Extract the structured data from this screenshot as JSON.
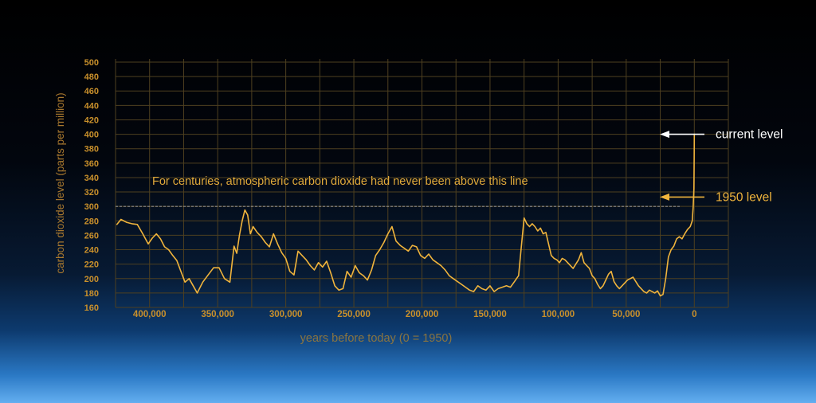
{
  "chart_data": {
    "type": "line",
    "title": "",
    "xlabel": "years before today (0 = 1950)",
    "ylabel": "carbon dioxide level (parts per million)",
    "xlim": [
      425000,
      -25000
    ],
    "ylim": [
      160,
      500
    ],
    "x_ticks": [
      400000,
      350000,
      300000,
      250000,
      200000,
      150000,
      100000,
      50000,
      0
    ],
    "x_tick_labels": [
      "400,000",
      "350,000",
      "300,000",
      "250,000",
      "200,000",
      "150,000",
      "100,000",
      "50,000",
      "0"
    ],
    "y_ticks": [
      160,
      180,
      200,
      220,
      240,
      260,
      280,
      300,
      320,
      340,
      360,
      380,
      400,
      420,
      440,
      460,
      480,
      500
    ],
    "y_tick_labels": [
      "160",
      "180",
      "200",
      "220",
      "240",
      "260",
      "280",
      "300",
      "320",
      "340",
      "360",
      "380",
      "400",
      "420",
      "440",
      "460",
      "480",
      "500"
    ],
    "grid": true,
    "colors": {
      "line": "#f0b43c",
      "grid": "#4e4020",
      "text": "#c9902b",
      "reference": "#8f8f8f"
    },
    "reference_line": {
      "y": 300,
      "label": "For centuries, atmospheric carbon dioxide had never been above this line"
    },
    "annotations": [
      {
        "label": "current level",
        "y": 400,
        "color": "#ffffff"
      },
      {
        "label": "1950 level",
        "y": 313,
        "color": "#f0b43c"
      }
    ],
    "series": [
      {
        "x": [
          424000,
          421000,
          417000,
          413000,
          409000,
          405000,
          401000,
          398000,
          395000,
          392000,
          389000,
          386000,
          383000,
          380000,
          377000,
          374000,
          371000,
          368000,
          365000,
          361000,
          357000,
          353000,
          349000,
          345000,
          341000,
          338000,
          336000,
          334000,
          332000,
          330000,
          328000,
          326000,
          324000,
          321000,
          318000,
          315000,
          312000,
          309000,
          306000,
          303000,
          300000,
          297000,
          294000,
          291000,
          288000,
          285000,
          282000,
          279000,
          276000,
          273000,
          270000,
          267000,
          264000,
          261000,
          258000,
          255000,
          252000,
          249000,
          246000,
          243000,
          240000,
          237000,
          234000,
          231000,
          228000,
          225000,
          222000,
          219000,
          216000,
          213000,
          210000,
          207000,
          204000,
          201000,
          198000,
          195000,
          192000,
          189000,
          186000,
          183000,
          180000,
          177000,
          174000,
          171000,
          168000,
          165000,
          162000,
          159000,
          156000,
          153000,
          150000,
          147000,
          144000,
          141000,
          138000,
          135000,
          132000,
          129000,
          127000,
          125000,
          123000,
          121000,
          119000,
          117000,
          115000,
          113000,
          111000,
          109000,
          107000,
          105000,
          103000,
          101000,
          99000,
          97000,
          95000,
          93000,
          91000,
          89000,
          87000,
          85000,
          83000,
          81000,
          79000,
          77000,
          75000,
          73000,
          71000,
          69000,
          67000,
          65000,
          63000,
          61000,
          59000,
          57000,
          55000,
          53000,
          51000,
          49000,
          47000,
          45000,
          43000,
          41000,
          39000,
          37000,
          35000,
          33000,
          31000,
          29000,
          27000,
          25000,
          23000,
          21000,
          19000,
          17000,
          15000,
          13000,
          11000,
          9000,
          7000,
          5000,
          3000,
          1500,
          800,
          300,
          100,
          0
        ],
        "y": [
          275,
          282,
          278,
          276,
          275,
          262,
          248,
          256,
          262,
          255,
          244,
          240,
          232,
          225,
          210,
          195,
          200,
          190,
          180,
          195,
          205,
          215,
          215,
          200,
          195,
          245,
          235,
          260,
          280,
          295,
          288,
          262,
          272,
          264,
          258,
          250,
          244,
          262,
          248,
          236,
          228,
          210,
          205,
          238,
          232,
          226,
          218,
          212,
          222,
          216,
          224,
          208,
          190,
          184,
          186,
          210,
          202,
          218,
          208,
          204,
          198,
          212,
          232,
          240,
          250,
          262,
          272,
          252,
          246,
          242,
          238,
          246,
          244,
          232,
          228,
          234,
          226,
          222,
          218,
          212,
          204,
          200,
          196,
          192,
          188,
          184,
          182,
          190,
          186,
          184,
          190,
          182,
          186,
          188,
          190,
          188,
          196,
          204,
          244,
          284,
          276,
          272,
          276,
          272,
          266,
          270,
          262,
          264,
          248,
          232,
          228,
          226,
          222,
          228,
          226,
          222,
          218,
          214,
          220,
          226,
          236,
          222,
          218,
          214,
          204,
          200,
          192,
          186,
          190,
          198,
          206,
          210,
          196,
          190,
          186,
          190,
          194,
          198,
          200,
          202,
          196,
          190,
          186,
          182,
          180,
          184,
          182,
          180,
          183,
          176,
          178,
          200,
          230,
          240,
          245,
          255,
          258,
          255,
          262,
          268,
          272,
          280,
          300,
          325,
          365,
          400
        ]
      }
    ]
  }
}
